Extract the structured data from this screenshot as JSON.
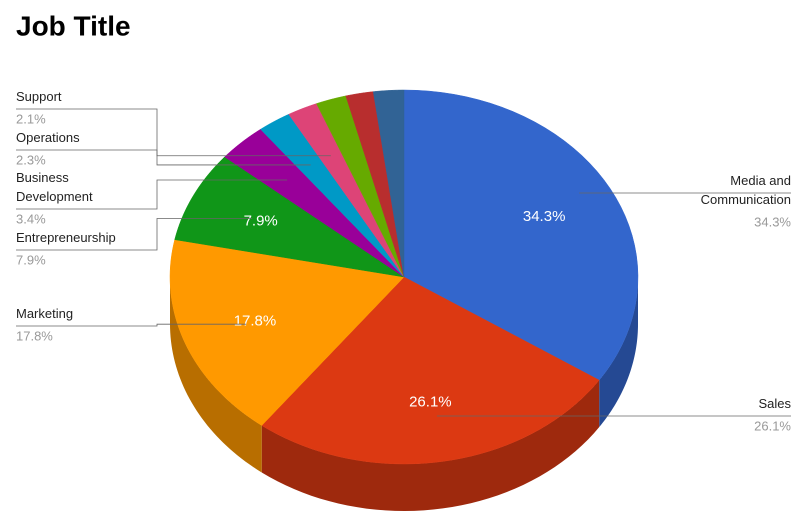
{
  "chart_data": {
    "type": "pie",
    "title": "Job Title",
    "categories": [
      "Media and Communication",
      "Sales",
      "Marketing",
      "Entrepreneurship",
      "Business Development",
      "Operations",
      "Support",
      null,
      null,
      null
    ],
    "values": [
      34.3,
      26.1,
      17.8,
      7.9,
      3.4,
      2.3,
      2.1,
      2.1,
      1.9,
      2.1
    ],
    "value_labels": [
      "34.3%",
      "26.1%",
      "17.8%",
      "7.9%",
      "3.4%",
      "2.3%",
      "2.1%",
      null,
      null,
      null
    ],
    "colors": [
      "#3366cc",
      "#dc3912",
      "#ff9900",
      "#109618",
      "#990099",
      "#0099c6",
      "#dd4477",
      "#66aa00",
      "#b82e2e",
      "#316395"
    ]
  }
}
